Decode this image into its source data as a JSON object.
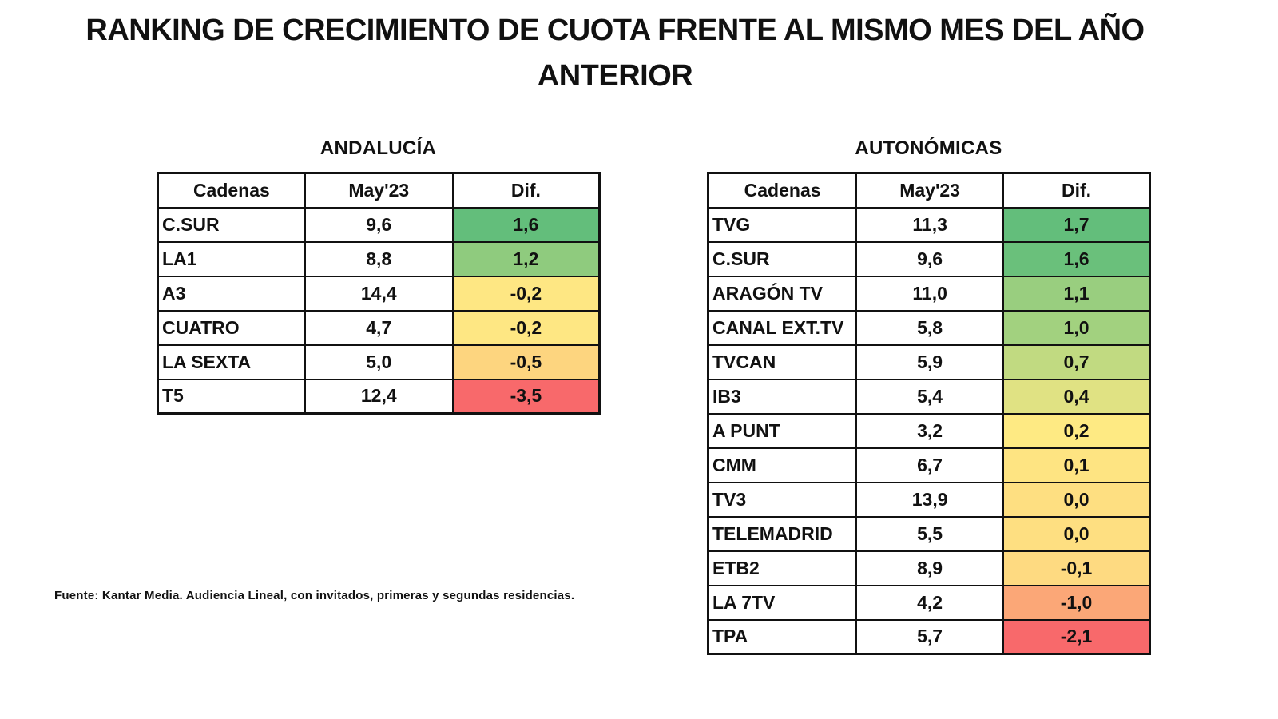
{
  "title": {
    "line1": "RANKING DE CRECIMIENTO DE CUOTA FRENTE AL MISMO MES DEL AÑO",
    "line2": "ANTERIOR"
  },
  "andalucia": {
    "title": "ANDALUCÍA",
    "headers": [
      "Cadenas",
      "May'23",
      "Dif."
    ],
    "rows": [
      {
        "cadena": "C.SUR",
        "may23": "9,6",
        "dif": "1,6",
        "color": "#63BE7B"
      },
      {
        "cadena": "LA1",
        "may23": "8,8",
        "dif": "1,2",
        "color": "#8FCB7E"
      },
      {
        "cadena": "A3",
        "may23": "14,4",
        "dif": "-0,2",
        "color": "#FEE783"
      },
      {
        "cadena": "CUATRO",
        "may23": "4,7",
        "dif": "-0,2",
        "color": "#FEE783"
      },
      {
        "cadena": "LA SEXTA",
        "may23": "5,0",
        "dif": "-0,5",
        "color": "#FDD57F"
      },
      {
        "cadena": "T5",
        "may23": "12,4",
        "dif": "-3,5",
        "color": "#F8696B"
      }
    ]
  },
  "autonomicas": {
    "title": "AUTONÓMICAS",
    "headers": [
      "Cadenas",
      "May'23",
      "Dif."
    ],
    "rows": [
      {
        "cadena": "TVG",
        "may23": "11,3",
        "dif": "1,7",
        "color": "#63BE7B"
      },
      {
        "cadena": "C.SUR",
        "may23": "9,6",
        "dif": "1,6",
        "color": "#6AC07B"
      },
      {
        "cadena": "ARAGÓN TV",
        "may23": "11,0",
        "dif": "1,1",
        "color": "#99CE7F"
      },
      {
        "cadena": "CANAL EXT.TV",
        "may23": "5,8",
        "dif": "1,0",
        "color": "#A2D17F"
      },
      {
        "cadena": "TVCAN",
        "may23": "5,9",
        "dif": "0,7",
        "color": "#C1DA81"
      },
      {
        "cadena": "IB3",
        "may23": "5,4",
        "dif": "0,4",
        "color": "#E0E283"
      },
      {
        "cadena": "A PUNT",
        "may23": "3,2",
        "dif": "0,2",
        "color": "#FEEA83"
      },
      {
        "cadena": "CMM",
        "may23": "6,7",
        "dif": "0,1",
        "color": "#FEE482"
      },
      {
        "cadena": "TV3",
        "may23": "13,9",
        "dif": "0,0",
        "color": "#FEDF81"
      },
      {
        "cadena": "TELEMADRID",
        "may23": "5,5",
        "dif": "0,0",
        "color": "#FEDF81"
      },
      {
        "cadena": "ETB2",
        "may23": "8,9",
        "dif": "-0,1",
        "color": "#FEDA81"
      },
      {
        "cadena": "LA 7TV",
        "may23": "4,2",
        "dif": "-1,0",
        "color": "#FBA777"
      },
      {
        "cadena": "TPA",
        "may23": "5,7",
        "dif": "-2,1",
        "color": "#F8696B"
      }
    ]
  },
  "source": "Fuente: Kantar Media. Audiencia Lineal, con invitados, primeras y segundas residencias."
}
